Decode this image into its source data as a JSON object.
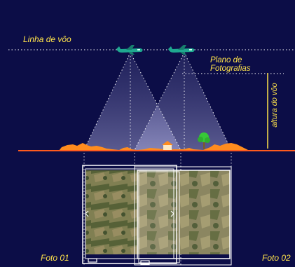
{
  "labels": {
    "flight_line": "Linha de vôo",
    "photo_plane_line1": "Plano de",
    "photo_plane_line2": "Fotografias",
    "altitude": "altura do vôo",
    "photo_1": "Foto 01",
    "photo_2": "Foto 02"
  },
  "colors": {
    "background": "#0c0d47",
    "label_text": "#ffe34a",
    "aircraft": "#1fa890",
    "ground_line": "#ff5a1e",
    "terrain": "#ff8c1e",
    "tree": "#37c837",
    "dotted_lines": "#ffffff"
  },
  "icons": {
    "aircraft": "airplane-icon",
    "house": "house-icon",
    "tree": "tree-icon"
  }
}
